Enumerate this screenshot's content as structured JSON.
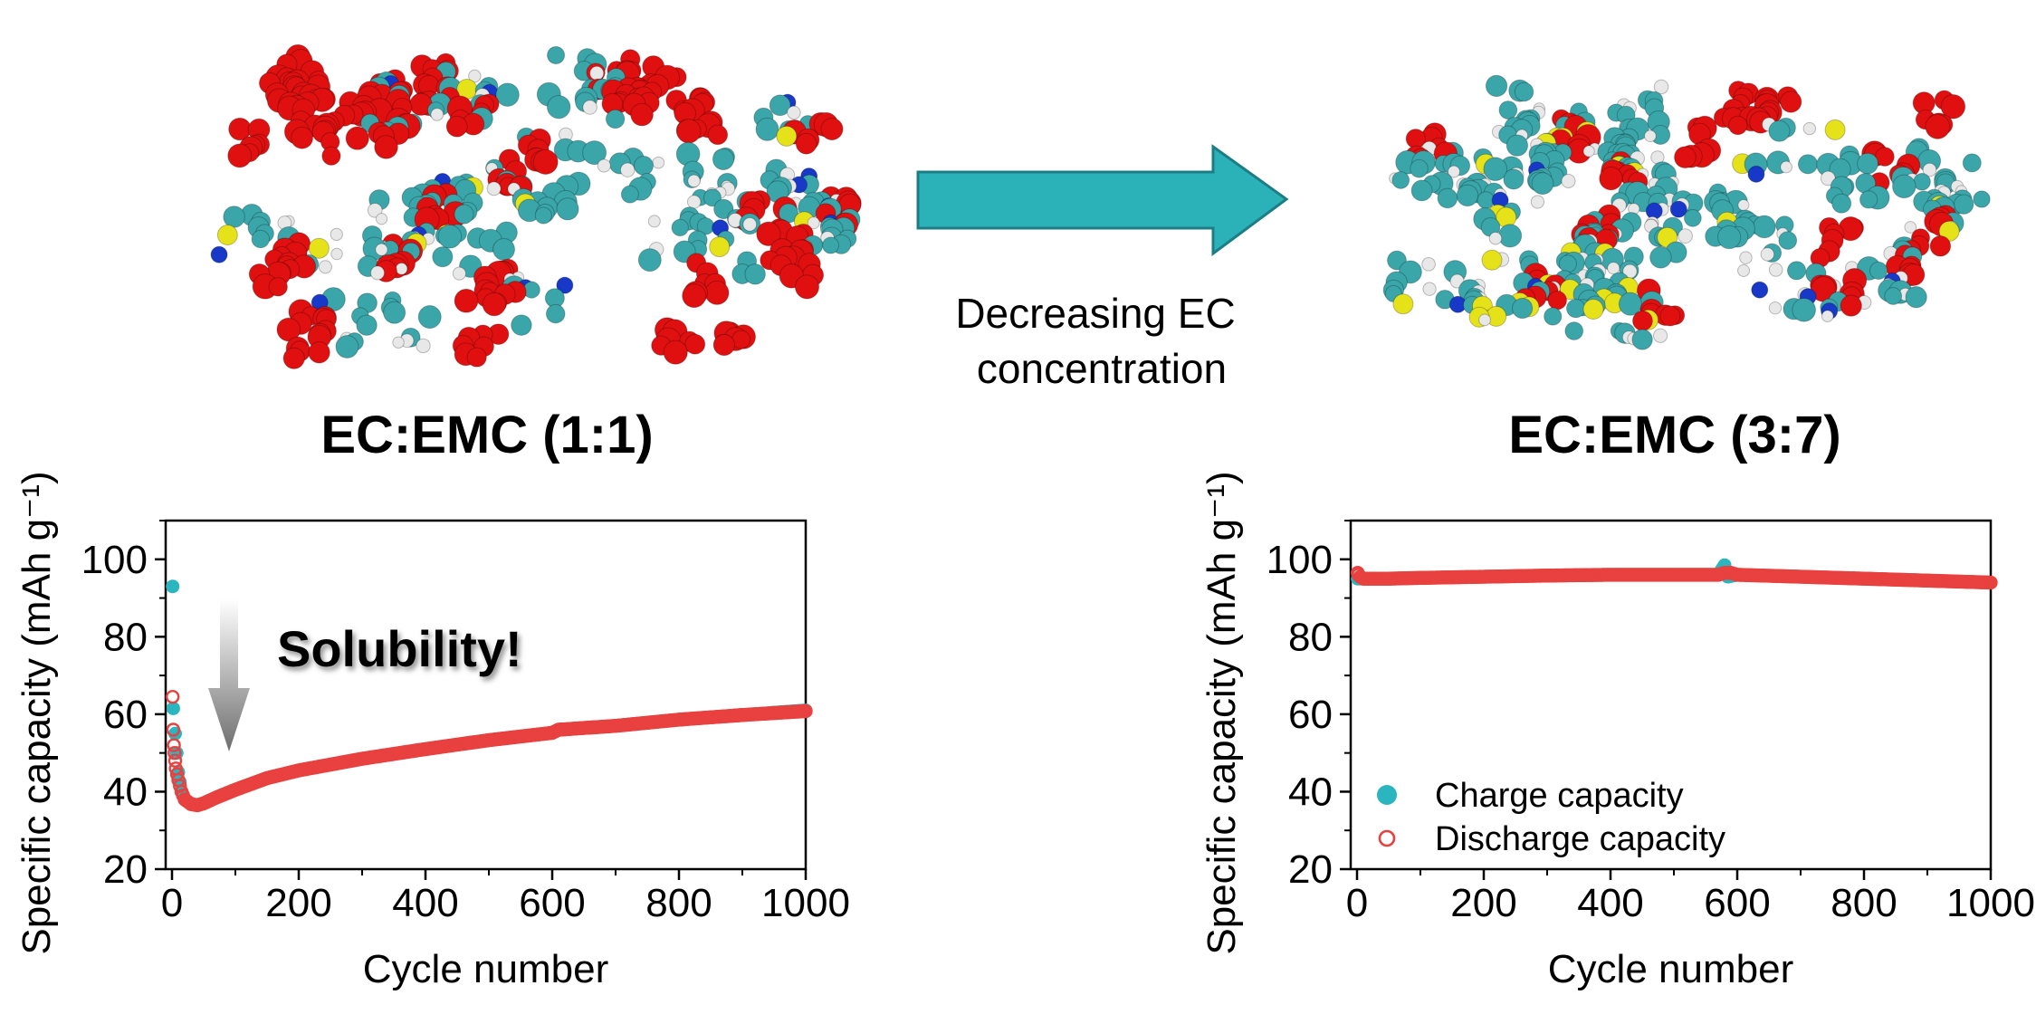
{
  "annotations": {
    "arrow_text_line1": "Decreasing EC",
    "arrow_text_line2": "concentration",
    "left_title": "EC:EMC (1:1)",
    "right_title": "EC:EMC (3:7)",
    "solubility": "Solubility!"
  },
  "colors": {
    "teal": "#2BB5BF",
    "red": "#E8413F",
    "arrow_teal": "#2BB1B8",
    "arrow_edge": "#1C7E84",
    "atom_red": "#E01010",
    "atom_teal": "#3AA6AA",
    "atom_white": "#E8E8E8",
    "atom_yellow": "#E6E21A",
    "atom_blue": "#1838C8"
  },
  "chart_data": [
    {
      "type": "scatter",
      "title": "EC:EMC (1:1)",
      "xlabel": "Cycle number",
      "ylabel": "Specific capacity (mAh g⁻¹)",
      "xlim": [
        -10,
        1000
      ],
      "ylim": [
        20,
        110
      ],
      "xticks": [
        "0",
        "200",
        "400",
        "600",
        "800",
        "1000"
      ],
      "yticks": [
        "20",
        "40",
        "60",
        "80",
        "100"
      ],
      "grid": false,
      "series": [
        {
          "name": "Charge capacity",
          "marker": "filled-circle",
          "x": [
            1,
            2,
            5,
            10,
            15,
            20,
            30,
            40,
            50,
            70,
            100,
            150,
            200,
            300,
            400,
            500,
            600,
            610,
            700,
            800,
            900,
            1000
          ],
          "y": [
            93,
            61.5,
            55,
            45,
            40,
            38,
            36.8,
            36.5,
            37,
            38.5,
            40.5,
            43.5,
            45.5,
            48.5,
            51,
            53.3,
            55.2,
            56,
            57,
            58.6,
            59.8,
            61
          ]
        },
        {
          "name": "Discharge capacity",
          "marker": "open-circle",
          "x": [
            1,
            2,
            3,
            4,
            5,
            6,
            8,
            10,
            15,
            20,
            30,
            40,
            50,
            70,
            100,
            150,
            200,
            300,
            400,
            500,
            600,
            610,
            700,
            800,
            900,
            1000
          ],
          "y": [
            64.5,
            56,
            52,
            50,
            48,
            46,
            44.5,
            43,
            40,
            38,
            36.8,
            36.5,
            37,
            38.5,
            40.5,
            43.5,
            45.5,
            48.5,
            51,
            53.3,
            55.2,
            56,
            57,
            58.6,
            59.8,
            60.8
          ]
        }
      ]
    },
    {
      "type": "scatter",
      "title": "EC:EMC (3:7)",
      "xlabel": "Cycle number",
      "ylabel": "Specific capacity (mAh g⁻¹)",
      "xlim": [
        -10,
        1000
      ],
      "ylim": [
        20,
        110
      ],
      "xticks": [
        "0",
        "200",
        "400",
        "600",
        "800",
        "1000"
      ],
      "yticks": [
        "20",
        "40",
        "60",
        "80",
        "100"
      ],
      "grid": false,
      "legend": {
        "position": "bottom-left",
        "entries": [
          "Charge capacity",
          "Discharge capacity"
        ]
      },
      "series": [
        {
          "name": "Charge capacity",
          "marker": "filled-circle",
          "x": [
            1,
            5,
            10,
            20,
            50,
            100,
            200,
            300,
            400,
            500,
            570,
            580,
            585,
            600,
            700,
            800,
            900,
            1000
          ],
          "y": [
            95,
            95,
            95,
            95,
            95,
            95.2,
            95.5,
            95.8,
            96,
            96,
            96,
            98.5,
            95.5,
            96,
            95.5,
            95,
            94.5,
            94
          ]
        },
        {
          "name": "Discharge capacity",
          "marker": "open-circle",
          "x": [
            1,
            2,
            5,
            10,
            20,
            50,
            100,
            200,
            300,
            400,
            500,
            570,
            580,
            590,
            600,
            700,
            800,
            900,
            1000
          ],
          "y": [
            96.5,
            96,
            95.5,
            95,
            95,
            95,
            95.2,
            95.5,
            95.8,
            96,
            96,
            96,
            96.5,
            96.5,
            96,
            95.5,
            95,
            94.5,
            94
          ]
        }
      ]
    }
  ]
}
